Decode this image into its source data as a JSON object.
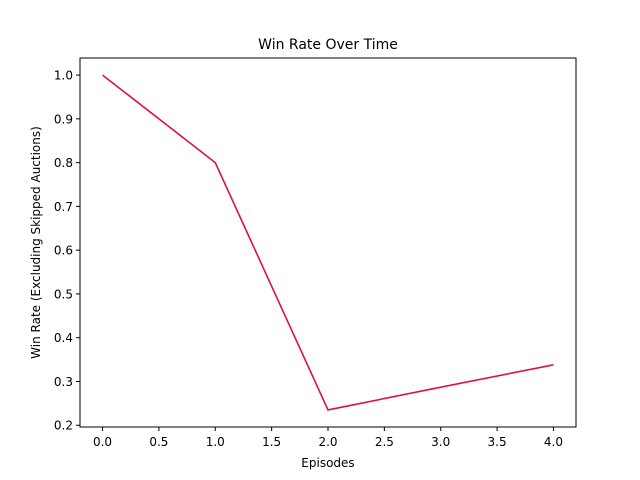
{
  "chart_data": {
    "type": "line",
    "title": "Win Rate Over Time",
    "xlabel": "Episodes",
    "ylabel": "Win Rate (Excluding Skipped Auctions)",
    "x": [
      0,
      1,
      2,
      3,
      4
    ],
    "series": [
      {
        "values": [
          1.0,
          0.8,
          0.235,
          0.287,
          0.338
        ],
        "color": "#dc143c"
      }
    ],
    "xlim": [
      -0.2,
      4.2
    ],
    "ylim": [
      0.196,
      1.039
    ],
    "xticks": [
      0.0,
      0.5,
      1.0,
      1.5,
      2.0,
      2.5,
      3.0,
      3.5,
      4.0
    ],
    "xtick_labels": [
      "0.0",
      "0.5",
      "1.0",
      "1.5",
      "2.0",
      "2.5",
      "3.0",
      "3.5",
      "4.0"
    ],
    "yticks": [
      0.2,
      0.3,
      0.4,
      0.5,
      0.6,
      0.7,
      0.8,
      0.9,
      1.0
    ],
    "ytick_labels": [
      "0.2",
      "0.3",
      "0.4",
      "0.5",
      "0.6",
      "0.7",
      "0.8",
      "0.9",
      "1.0"
    ],
    "grid": false,
    "legend": "none"
  }
}
